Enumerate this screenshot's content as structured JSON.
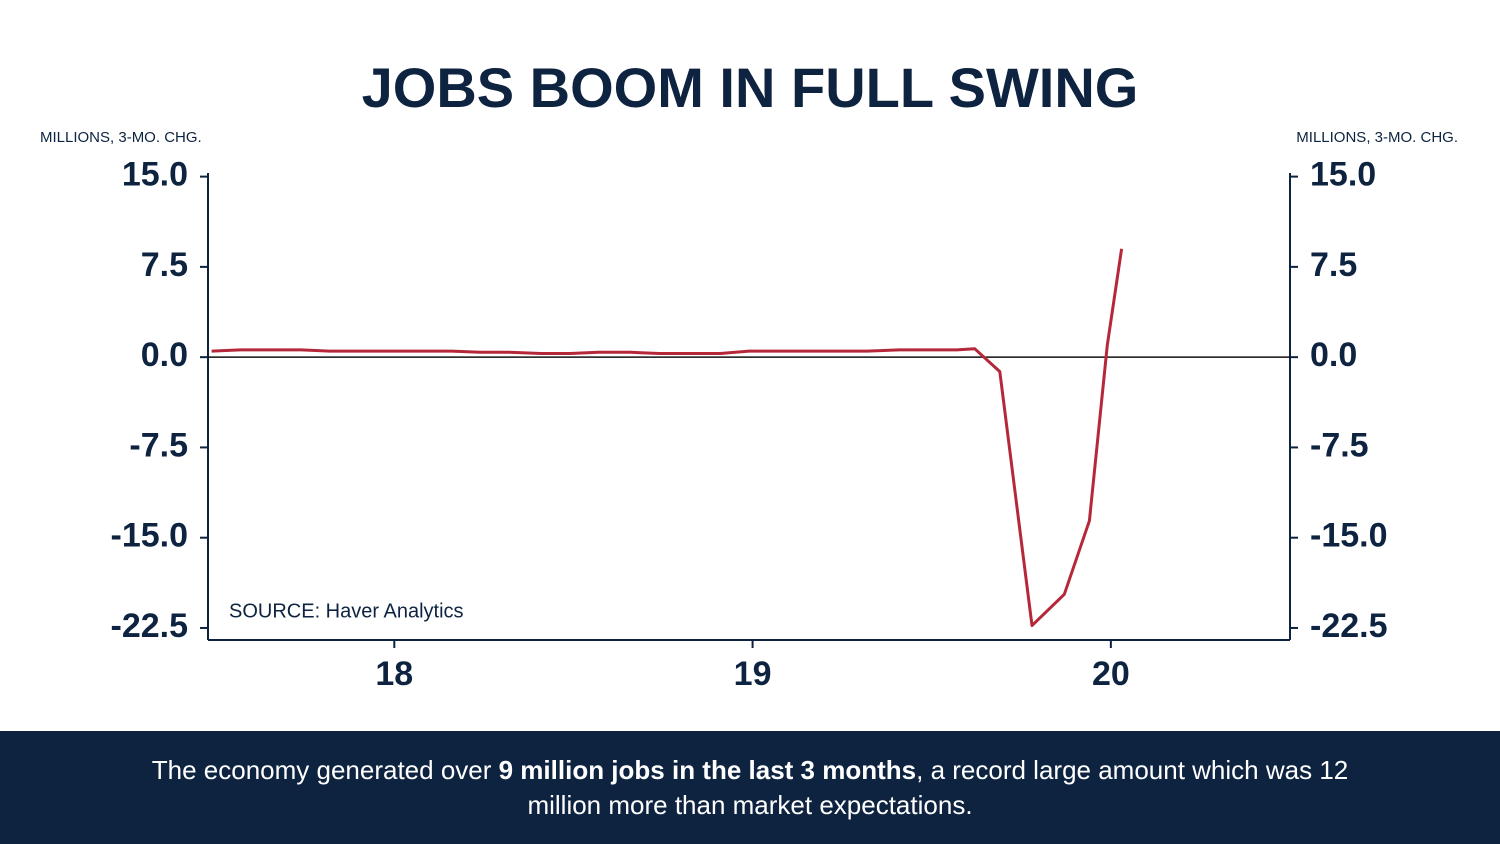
{
  "chart_data": {
    "type": "line",
    "title": "JOBS BOOM IN FULL SWING",
    "y_label": "MILLIONS, 3-MO. CHG.",
    "y2_label": "MILLIONS, 3-MO. CHG.",
    "source": "SOURCE: Haver Analytics",
    "x": [
      17.49,
      17.57,
      17.66,
      17.74,
      17.82,
      17.91,
      17.99,
      18.07,
      18.16,
      18.24,
      18.32,
      18.41,
      18.49,
      18.57,
      18.66,
      18.74,
      18.82,
      18.91,
      18.99,
      19.07,
      19.16,
      19.24,
      19.32,
      19.41,
      19.49,
      19.57,
      19.62,
      19.69,
      19.78,
      19.87,
      19.94,
      19.99,
      20.03
    ],
    "series": [
      {
        "color": "#b5283a",
        "values": [
          0.5,
          0.6,
          0.6,
          0.6,
          0.5,
          0.5,
          0.5,
          0.5,
          0.5,
          0.4,
          0.4,
          0.3,
          0.3,
          0.4,
          0.4,
          0.3,
          0.3,
          0.3,
          0.5,
          0.5,
          0.5,
          0.5,
          0.5,
          0.6,
          0.6,
          0.6,
          0.7,
          -1.2,
          -22.3,
          -19.7,
          -13.6,
          1.0,
          9.0
        ]
      }
    ],
    "xlim": [
      17.48,
      20.5
    ],
    "xticks": [
      18,
      19,
      20
    ],
    "ylim": [
      -23.5,
      15.3
    ],
    "yticks": [
      {
        "value": -22.5,
        "label": "-22.5"
      },
      {
        "value": -15,
        "label": "-15.0"
      },
      {
        "value": -7.5,
        "label": "-7.5"
      },
      {
        "value": 0,
        "label": "0.0"
      },
      {
        "value": 7.5,
        "label": "7.5"
      },
      {
        "value": 15,
        "label": "15.0"
      }
    ],
    "y2lim": [
      -23.5,
      15.3
    ],
    "y2ticks": [
      {
        "value": -22.5,
        "label": "-22.5"
      },
      {
        "value": -15,
        "label": "-15.0"
      },
      {
        "value": -7.5,
        "label": "-7.5"
      },
      {
        "value": 0,
        "label": "0.0"
      },
      {
        "value": 7.5,
        "label": "7.5"
      },
      {
        "value": 15,
        "label": "15.0"
      }
    ]
  },
  "footer": {
    "before": "The economy generated over ",
    "bold": "9 million jobs in the last 3 months",
    "after": ", a record large amount which was 12 million more than market expectations."
  }
}
